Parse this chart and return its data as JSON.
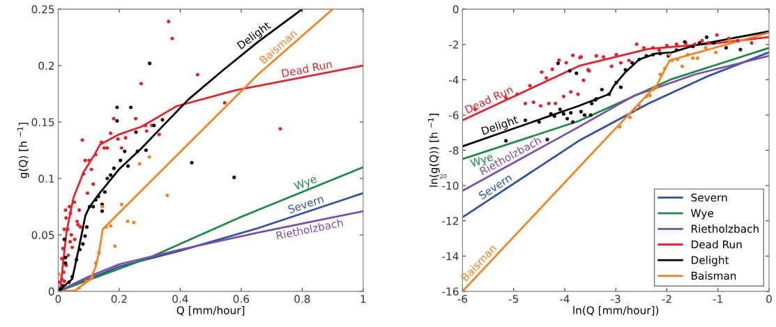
{
  "chart_data": [
    {
      "type": "line",
      "xlabel": "Q [mm/hour]",
      "ylabel": "g(Q) [h $^{−1}$]",
      "xlim": [
        0,
        1
      ],
      "ylim": [
        0,
        0.25
      ],
      "xticks": [
        0,
        0.2,
        0.4,
        0.6,
        0.8,
        1
      ],
      "yticks": [
        0,
        0.05,
        0.1,
        0.15,
        0.2,
        0.25
      ],
      "grid": false,
      "legend": false,
      "series": [
        {
          "type": "scatter",
          "color": "#e8202a",
          "x": [
            0.362,
            0.374,
            0.457,
            0.272,
            0.546,
            0.079,
            0.182,
            0.254,
            0.286,
            0.307,
            0.331,
            0.29,
            0.172,
            0.196,
            0.221,
            0.208,
            0.151,
            0.161,
            0.142,
            0.123,
            0.109,
            0.088,
            0.101,
            0.083,
            0.115,
            0.096,
            0.053,
            0.069,
            0.037,
            0.024,
            0.04,
            0.026,
            0.062,
            0.065,
            0.073,
            0.02,
            0.031,
            0.043,
            0.054,
            0.039,
            0.046,
            0.016,
            0.033,
            0.012,
            0.026,
            0.018,
            0.012,
            0.005,
            0.02,
            0.728
          ],
          "values": [
            0.239,
            0.224,
            0.192,
            0.184,
            0.167,
            0.134,
            0.153,
            0.153,
            0.147,
            0.147,
            0.139,
            0.142,
            0.14,
            0.135,
            0.136,
            0.127,
            0.127,
            0.127,
            0.132,
            0.121,
            0.108,
            0.116,
            0.116,
            0.104,
            0.095,
            0.087,
            0.079,
            0.072,
            0.075,
            0.072,
            0.069,
            0.065,
            0.062,
            0.059,
            0.057,
            0.055,
            0.055,
            0.05,
            0.046,
            0.044,
            0.039,
            0.038,
            0.032,
            0.029,
            0.023,
            0.017,
            0.011,
            0.008,
            0.009,
            0.144
          ]
        },
        {
          "type": "scatter",
          "color": "#000000",
          "x": [
            0.3,
            0.193,
            0.238,
            0.193,
            0.342,
            0.314,
            0.255,
            0.218,
            0.26,
            0.288,
            0.204,
            0.229,
            0.183,
            0.172,
            0.161,
            0.153,
            0.132,
            0.123,
            0.144,
            0.144,
            0.115,
            0.103,
            0.094,
            0.088,
            0.081,
            0.071,
            0.06,
            0.046,
            0.035,
            0.02,
            0.024,
            0.024,
            0.016,
            0.008,
            0.438,
            0.577
          ],
          "values": [
            0.202,
            0.163,
            0.163,
            0.151,
            0.152,
            0.147,
            0.141,
            0.124,
            0.124,
            0.125,
            0.116,
            0.111,
            0.109,
            0.103,
            0.1,
            0.088,
            0.084,
            0.081,
            0.077,
            0.071,
            0.075,
            0.075,
            0.057,
            0.049,
            0.042,
            0.037,
            0.028,
            0.013,
            0.008,
            0.046,
            0.03,
            0.025,
            0.005,
            0.002,
            0.114,
            0.101
          ]
        },
        {
          "type": "scatter",
          "color": "#f58220",
          "x": [
            0.299,
            0.267,
            0.358,
            0.208,
            0.145,
            0.172,
            0.157,
            0.228,
            0.248,
            0.186,
            0.134,
            0.123,
            0.001,
            0.092,
            0.111,
            0.069
          ],
          "values": [
            0.119,
            0.113,
            0.085,
            0.077,
            0.075,
            0.058,
            0.057,
            0.062,
            0.061,
            0.04,
            0.034,
            0.025,
            0.015,
            0.009,
            0.012,
            0.003
          ]
        },
        {
          "name": "Severn",
          "color": "#2e4fa8",
          "x": [
            0,
            0.2,
            0.4,
            0.655,
            1
          ],
          "values": [
            0,
            0.022,
            0.036,
            0.056,
            0.087
          ]
        },
        {
          "name": "Wye",
          "color": "#1a8a45",
          "x": [
            0,
            0.3,
            0.6,
            1
          ],
          "values": [
            0,
            0.03,
            0.066,
            0.11
          ]
        },
        {
          "name": "Rietholzbach",
          "color": "#7a4fa8",
          "x": [
            0,
            0.1,
            0.2,
            0.4,
            0.655,
            1
          ],
          "values": [
            0,
            0.013,
            0.024,
            0.037,
            0.052,
            0.071
          ]
        },
        {
          "name": "Dead Run",
          "color": "#e8202a",
          "x": [
            0,
            0.008,
            0.027,
            0.05,
            0.084,
            0.119,
            0.137,
            0.199,
            0.274,
            0.388,
            0.58,
            1
          ],
          "values": [
            0,
            0.005,
            0.052,
            0.083,
            0.106,
            0.121,
            0.13,
            0.139,
            0.146,
            0.164,
            0.178,
            0.2
          ]
        },
        {
          "name": "Delight",
          "color": "#000000",
          "x": [
            0,
            0.046,
            0.062,
            0.078,
            0.089,
            0.103,
            0.13,
            0.199,
            0.274,
            0.352,
            0.427,
            0.541,
            0.655,
            0.8
          ],
          "values": [
            0,
            0.011,
            0.031,
            0.052,
            0.067,
            0.075,
            0.085,
            0.108,
            0.127,
            0.149,
            0.17,
            0.196,
            0.221,
            0.25
          ]
        },
        {
          "name": "Baisman",
          "color": "#f58220",
          "x": [
            0,
            0.055,
            0.107,
            0.123,
            0.135,
            0.146,
            0.655,
            0.9
          ],
          "values": [
            0,
            0.0006,
            0.011,
            0.022,
            0.036,
            0.055,
            0.192,
            0.25
          ]
        }
      ]
    },
    {
      "type": "line",
      "xlabel": "ln(Q [mm/hour])",
      "ylabel": "ln(g(Q)) [h $^{−1}$]",
      "xlim": [
        -6,
        0
      ],
      "ylim": [
        -16,
        0
      ],
      "xticks": [
        -6,
        -5,
        -4,
        -3,
        -2,
        -1,
        0
      ],
      "yticks": [
        -16,
        -14,
        -12,
        -10,
        -8,
        -6,
        -4,
        -2,
        0
      ],
      "grid": false,
      "legend": "bottom right",
      "annotations": [
        "20"
      ],
      "series": [
        {
          "type": "scatter",
          "color": "#e8202a",
          "x": [
            -5.75,
            -5.15,
            -4.93,
            -4.68,
            -4.45,
            -4.36,
            -4.24,
            -4.11,
            -3.97,
            -3.84,
            -3.7,
            -3.63,
            -3.52,
            -3.38,
            -4.77,
            -4.61,
            -4.47,
            -4.31,
            -4.18,
            -4.02,
            -3.88,
            -3.74,
            -3.68,
            -3.54,
            -3.24,
            -3.08,
            -2.99,
            -2.9,
            -2.74,
            -2.59,
            -2.45,
            -2.27,
            -2.15,
            -2.0,
            -1.81,
            -1.63,
            -1.45,
            -1.31,
            -1.18,
            -1.02,
            -0.79,
            -0.61,
            -0.34
          ],
          "values": [
            -5.68,
            -5.02,
            -4.82,
            -4.34,
            -3.57,
            -3.9,
            -3.41,
            -2.89,
            -3.04,
            -2.62,
            -2.75,
            -4.03,
            -3.5,
            -2.65,
            -5.35,
            -5.28,
            -5.48,
            -5.35,
            -5.35,
            -4.95,
            -4.69,
            -4.82,
            -2.71,
            -3.44,
            -2.71,
            -3.24,
            -2.58,
            -3.04,
            -2.91,
            -1.99,
            -2.19,
            -2.19,
            -2.32,
            -2.06,
            -1.99,
            -1.92,
            -1.99,
            -1.79,
            -1.92,
            -1.46,
            -1.66,
            -1.79,
            -1.92
          ]
        },
        {
          "type": "scatter",
          "color": "#000000",
          "x": [
            -5.15,
            -4.77,
            -4.5,
            -4.34,
            -4.27,
            -4.2,
            -4.13,
            -4.09,
            -4.02,
            -3.95,
            -3.9,
            -3.88,
            -3.84,
            -3.77,
            -3.68,
            -3.61,
            -3.49,
            -3.47,
            -3.38,
            -3.4,
            -3.27,
            -3.13,
            -2.99,
            -2.9,
            -2.81,
            -2.68,
            -2.54,
            -2.4,
            -2.27,
            -2.13,
            -1.97,
            -1.81,
            -1.65,
            -1.49,
            -1.36,
            -1.22,
            -1.08,
            -0.84,
            -0.56
          ],
          "values": [
            -7.46,
            -6.3,
            -6.4,
            -7.39,
            -5.94,
            -6.07,
            -3.07,
            -5.68,
            -5.94,
            -6.21,
            -3.5,
            -5.88,
            -6.4,
            -3.64,
            -5.81,
            -6.01,
            -6.01,
            -5.35,
            -5.09,
            -5.15,
            -4.56,
            -4.82,
            -4.16,
            -4.43,
            -3.44,
            -3.04,
            -2.85,
            -2.65,
            -2.58,
            -2.52,
            -2.65,
            -2.32,
            -1.86,
            -2.12,
            -1.92,
            -1.59,
            -1.92,
            -2.19,
            -2.29
          ]
        },
        {
          "type": "scatter",
          "color": "#f58220",
          "x": [
            -2.92,
            -2.72,
            -2.63,
            -2.54,
            -2.4,
            -2.33,
            -2.27,
            -2.2,
            -2.13,
            -2.04,
            -1.95,
            -1.9,
            -1.79,
            -1.7,
            -1.59,
            -1.49,
            -1.4,
            -1.24,
            -1.04,
            -0.77
          ],
          "values": [
            -6.67,
            -6.14,
            -5.68,
            -5.48,
            -4.95,
            -4.89,
            -4.56,
            -4.43,
            -3.7,
            -3.37,
            -2.58,
            -2.91,
            -2.85,
            -3.24,
            -2.58,
            -2.78,
            -2.78,
            -2.19,
            -2.45,
            -1.79
          ]
        },
        {
          "name": "Severn",
          "color": "#2e4fa8",
          "x": [
            -6,
            -3.72,
            -2.36,
            -1.22,
            0
          ],
          "values": [
            -11.8,
            -7.46,
            -5.35,
            -3.83,
            -2.45
          ]
        },
        {
          "name": "Wye",
          "color": "#1a8a45",
          "x": [
            -6,
            -3.72,
            -1.9,
            0
          ],
          "values": [
            -8.5,
            -6.34,
            -3.96,
            -2.2
          ]
        },
        {
          "name": "Rietholzbach",
          "color": "#7a4fa8",
          "x": [
            -6,
            -3.72,
            -2.63,
            -1.45,
            0
          ],
          "values": [
            -10.3,
            -6.67,
            -4.89,
            -3.7,
            -2.65
          ]
        },
        {
          "name": "Dead Run",
          "color": "#e8202a",
          "x": [
            -6,
            -3.7,
            -2.36,
            -0.99,
            0
          ],
          "values": [
            -6.3,
            -3.2,
            -2.25,
            -1.92,
            -1.58
          ]
        },
        {
          "name": "Delight",
          "color": "#000000",
          "x": [
            -6,
            -3.72,
            -3.13,
            -3.04,
            -2.81,
            -2.54,
            -2.22,
            -1.9,
            -1.45,
            0
          ],
          "values": [
            -7.78,
            -5.48,
            -4.82,
            -4.36,
            -3.57,
            -2.85,
            -2.52,
            -2.45,
            -2.05,
            -1.26
          ]
        },
        {
          "name": "Baisman",
          "color": "#f58220",
          "x": [
            -6,
            -3.72,
            -2.18,
            -2.04,
            -1.95,
            0
          ],
          "values": [
            -16,
            -8.97,
            -4.23,
            -3.44,
            -2.91,
            -1.33
          ]
        }
      ]
    }
  ]
}
